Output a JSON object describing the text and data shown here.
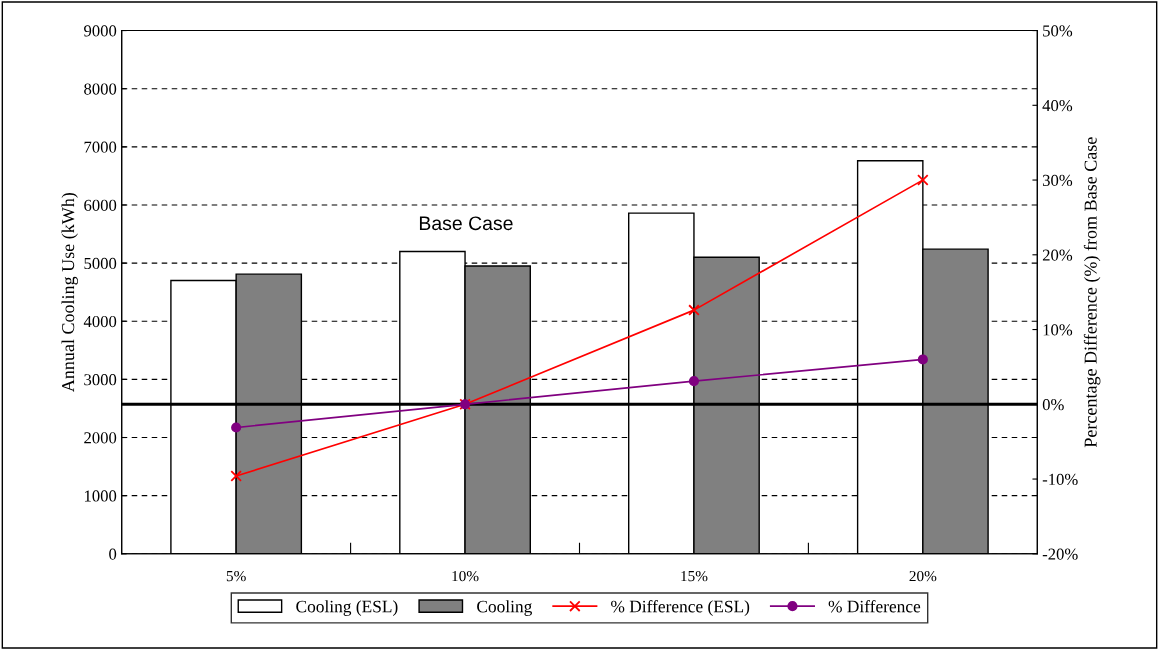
{
  "chart_data": {
    "type": "bar",
    "ylabel": "Annual Cooling Use (kWh)",
    "y2label": "Percentage Difference (%) from Base Case",
    "categories": [
      "5%",
      "10%",
      "15%",
      "20%"
    ],
    "series": [
      {
        "name": "Cooling (ESL)",
        "color": "#ffffff",
        "values": [
          4700,
          5200,
          5860,
          6760
        ]
      },
      {
        "name": "Cooling",
        "color": "#808080",
        "values": [
          4810,
          4950,
          5100,
          5240
        ]
      },
      {
        "name": "% Difference (ESL)",
        "type": "line",
        "axis": "y2",
        "marker": "cross",
        "color": "#ff0000",
        "values": [
          -9.6,
          0,
          12.6,
          30.0
        ]
      },
      {
        "name": "% Difference",
        "type": "line",
        "axis": "y2",
        "marker": "circle",
        "color": "#800080",
        "values": [
          -3.1,
          0,
          3.1,
          6.0
        ]
      }
    ],
    "ylim": [
      0,
      9000
    ],
    "yticks": [
      0,
      1000,
      2000,
      3000,
      4000,
      5000,
      6000,
      7000,
      8000,
      9000
    ],
    "y2lim": [
      -20,
      50
    ],
    "y2ticks": [
      {
        "value": -20,
        "label": "-20%"
      },
      {
        "value": -10,
        "label": "-10%"
      },
      {
        "value": 0,
        "label": "0%"
      },
      {
        "value": 10,
        "label": "10%"
      },
      {
        "value": 20,
        "label": "20%"
      },
      {
        "value": 30,
        "label": "30%"
      },
      {
        "value": 40,
        "label": "40%"
      },
      {
        "value": 50,
        "label": "50%"
      }
    ],
    "ref_lines": [
      {
        "axis": "y2",
        "value": 0,
        "color": "#000000"
      }
    ],
    "annotations": [
      "Base Case"
    ],
    "grid": "y",
    "legend": "bottom"
  }
}
